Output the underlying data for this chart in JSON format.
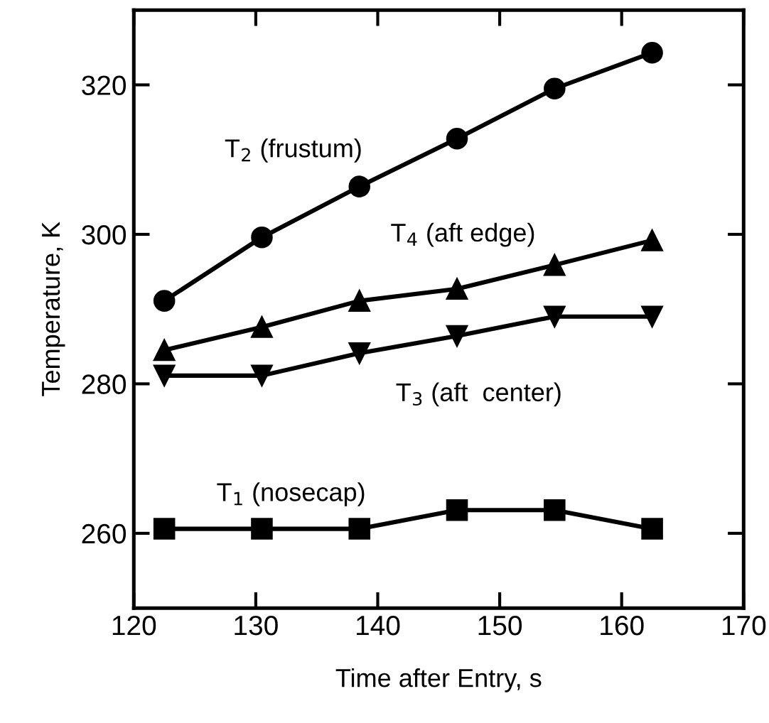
{
  "chart_data": {
    "type": "line",
    "xlabel": "Time after Entry, s",
    "ylabel": "Temperature, K",
    "x": [
      122.5,
      130.5,
      138.5,
      146.5,
      154.5,
      162.5
    ],
    "series": [
      {
        "name": "T$_{2}$ (frustum)",
        "color": "#000000",
        "marker": "circle",
        "values": [
          291.1,
          299.6,
          306.4,
          312.8,
          319.5,
          324.3
        ]
      },
      {
        "name": "T$_{4}$ (aft edge)",
        "color": "#000000",
        "marker": "triangle",
        "values": [
          284.5,
          287.6,
          291.1,
          292.7,
          295.9,
          299.2
        ]
      },
      {
        "name": "T$_{3}$ (aft  center)",
        "color": "#000000",
        "marker": "triangle_down",
        "values": [
          281.1,
          281.1,
          284.1,
          286.4,
          289.0,
          289.0
        ]
      },
      {
        "name": "T$_{1}$ (nosecap)",
        "color": "#000000",
        "marker": "square",
        "values": [
          260.6,
          260.6,
          260.6,
          263.1,
          263.1,
          260.6
        ]
      }
    ],
    "xlim": [
      120,
      170
    ],
    "xticks": [
      120,
      130,
      140,
      150,
      160,
      170
    ],
    "ylim": [
      250,
      330
    ],
    "yticks": [
      260,
      280,
      300,
      320
    ],
    "grid": false,
    "legend": false,
    "line_style": "solid"
  }
}
